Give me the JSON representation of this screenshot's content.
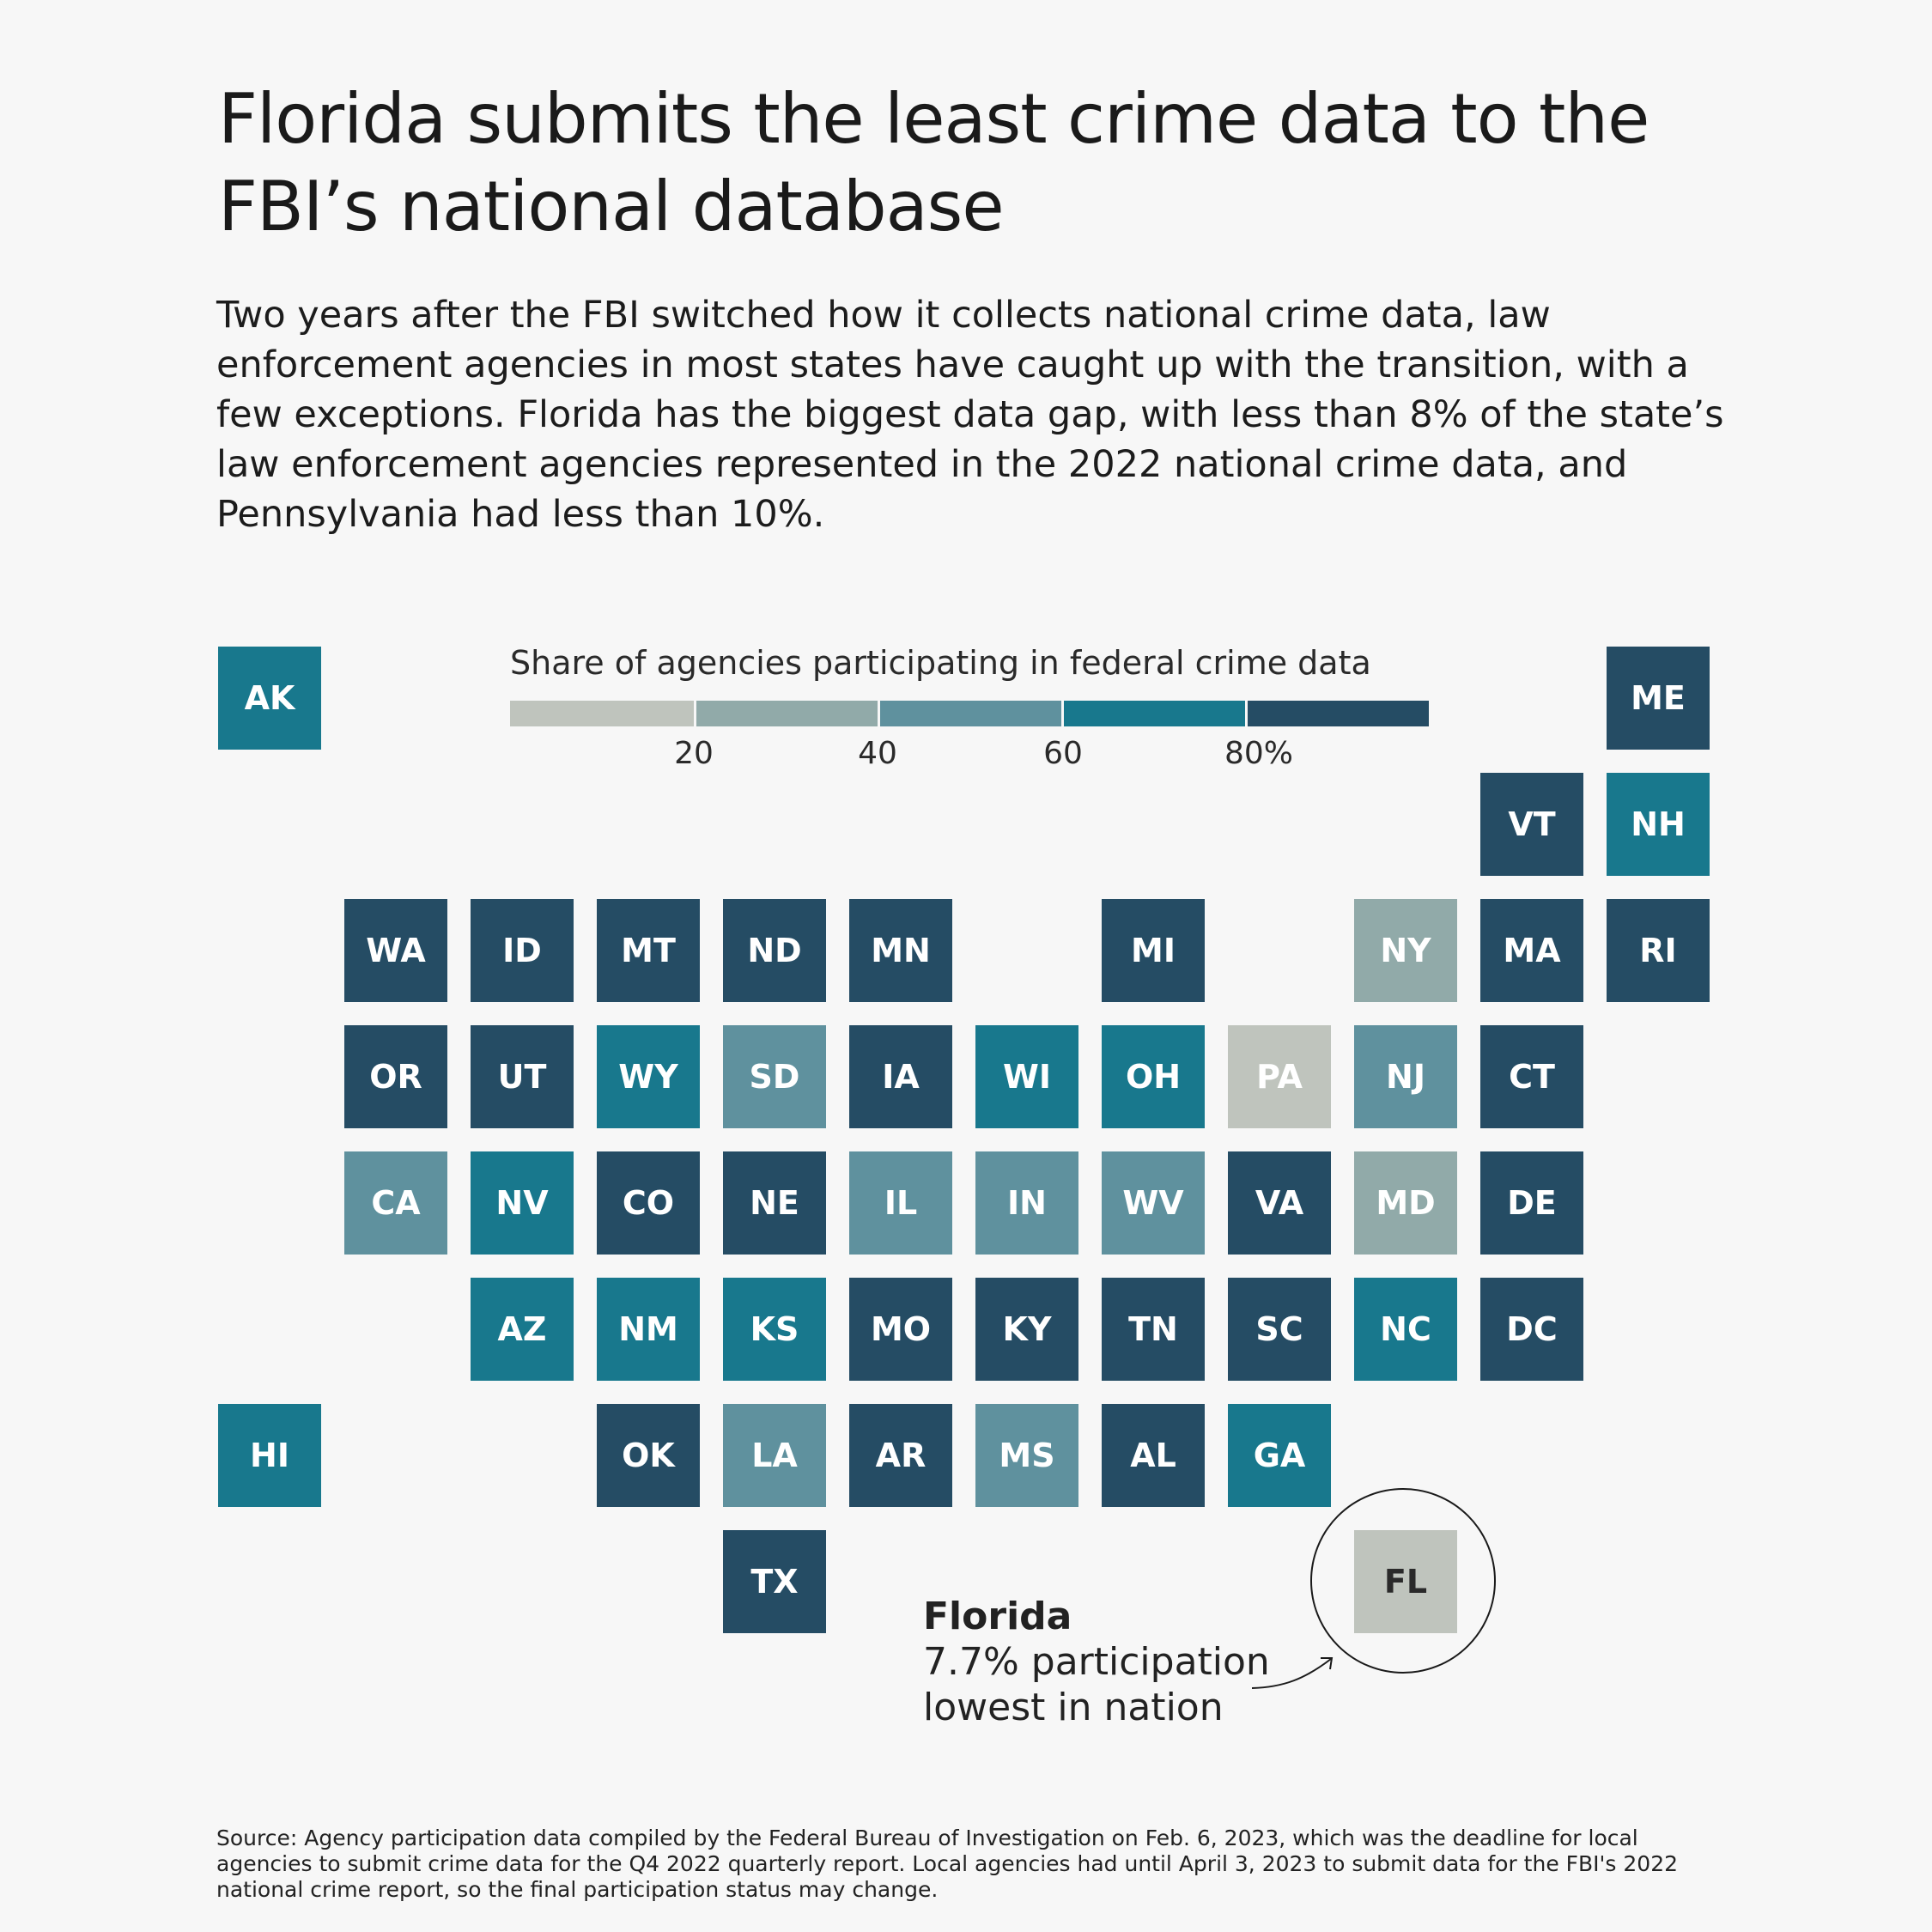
{
  "header": {
    "title": "Florida submits the least crime data to the FBI’s national database",
    "subtitle": "Two years after the FBI switched how it collects national crime data, law enforcement agencies in most states have caught up with the transition, with a few exceptions. Florida has the biggest data gap, with less than 8% of the state’s law enforcement agencies represented in the 2022 national crime data, and Pennsylvania had less than 10%."
  },
  "legend": {
    "title": "Share of agencies participating in federal crime data",
    "ticks": [
      "20",
      "40",
      "60",
      "80%"
    ],
    "bins": [
      {
        "range": [
          0,
          20
        ],
        "color": "#bfc4bd"
      },
      {
        "range": [
          20,
          40
        ],
        "color": "#91aaa9"
      },
      {
        "range": [
          40,
          60
        ],
        "color": "#5f919e"
      },
      {
        "range": [
          60,
          80
        ],
        "color": "#18788d"
      },
      {
        "range": [
          80,
          100
        ],
        "color": "#254c64"
      }
    ]
  },
  "chart_data": {
    "type": "heatmap",
    "layout": "tile-grid map of US states",
    "measure": "Share of agencies participating in federal crime data",
    "bins_percent": [
      [
        0,
        20
      ],
      [
        20,
        40
      ],
      [
        40,
        60
      ],
      [
        60,
        80
      ],
      [
        80,
        100
      ]
    ],
    "states": [
      {
        "abbr": "AK",
        "col": 0,
        "row": 0,
        "bin": 3
      },
      {
        "abbr": "ME",
        "col": 11,
        "row": 0,
        "bin": 4
      },
      {
        "abbr": "VT",
        "col": 10,
        "row": 1,
        "bin": 4
      },
      {
        "abbr": "NH",
        "col": 11,
        "row": 1,
        "bin": 3
      },
      {
        "abbr": "WA",
        "col": 1,
        "row": 2,
        "bin": 4
      },
      {
        "abbr": "ID",
        "col": 2,
        "row": 2,
        "bin": 4
      },
      {
        "abbr": "MT",
        "col": 3,
        "row": 2,
        "bin": 4
      },
      {
        "abbr": "ND",
        "col": 4,
        "row": 2,
        "bin": 4
      },
      {
        "abbr": "MN",
        "col": 5,
        "row": 2,
        "bin": 4
      },
      {
        "abbr": "MI",
        "col": 7,
        "row": 2,
        "bin": 4
      },
      {
        "abbr": "NY",
        "col": 9,
        "row": 2,
        "bin": 1
      },
      {
        "abbr": "MA",
        "col": 10,
        "row": 2,
        "bin": 4
      },
      {
        "abbr": "RI",
        "col": 11,
        "row": 2,
        "bin": 4
      },
      {
        "abbr": "OR",
        "col": 1,
        "row": 3,
        "bin": 4
      },
      {
        "abbr": "UT",
        "col": 2,
        "row": 3,
        "bin": 4
      },
      {
        "abbr": "WY",
        "col": 3,
        "row": 3,
        "bin": 3
      },
      {
        "abbr": "SD",
        "col": 4,
        "row": 3,
        "bin": 2
      },
      {
        "abbr": "IA",
        "col": 5,
        "row": 3,
        "bin": 4
      },
      {
        "abbr": "WI",
        "col": 6,
        "row": 3,
        "bin": 3
      },
      {
        "abbr": "OH",
        "col": 7,
        "row": 3,
        "bin": 3
      },
      {
        "abbr": "PA",
        "col": 8,
        "row": 3,
        "bin": 0
      },
      {
        "abbr": "NJ",
        "col": 9,
        "row": 3,
        "bin": 2
      },
      {
        "abbr": "CT",
        "col": 10,
        "row": 3,
        "bin": 4
      },
      {
        "abbr": "CA",
        "col": 1,
        "row": 4,
        "bin": 2
      },
      {
        "abbr": "NV",
        "col": 2,
        "row": 4,
        "bin": 3
      },
      {
        "abbr": "CO",
        "col": 3,
        "row": 4,
        "bin": 4
      },
      {
        "abbr": "NE",
        "col": 4,
        "row": 4,
        "bin": 4
      },
      {
        "abbr": "IL",
        "col": 5,
        "row": 4,
        "bin": 2
      },
      {
        "abbr": "IN",
        "col": 6,
        "row": 4,
        "bin": 2
      },
      {
        "abbr": "WV",
        "col": 7,
        "row": 4,
        "bin": 2
      },
      {
        "abbr": "VA",
        "col": 8,
        "row": 4,
        "bin": 4
      },
      {
        "abbr": "MD",
        "col": 9,
        "row": 4,
        "bin": 1
      },
      {
        "abbr": "DE",
        "col": 10,
        "row": 4,
        "bin": 4
      },
      {
        "abbr": "AZ",
        "col": 2,
        "row": 5,
        "bin": 3
      },
      {
        "abbr": "NM",
        "col": 3,
        "row": 5,
        "bin": 3
      },
      {
        "abbr": "KS",
        "col": 4,
        "row": 5,
        "bin": 3
      },
      {
        "abbr": "MO",
        "col": 5,
        "row": 5,
        "bin": 4
      },
      {
        "abbr": "KY",
        "col": 6,
        "row": 5,
        "bin": 4
      },
      {
        "abbr": "TN",
        "col": 7,
        "row": 5,
        "bin": 4
      },
      {
        "abbr": "SC",
        "col": 8,
        "row": 5,
        "bin": 4
      },
      {
        "abbr": "NC",
        "col": 9,
        "row": 5,
        "bin": 3
      },
      {
        "abbr": "DC",
        "col": 10,
        "row": 5,
        "bin": 4
      },
      {
        "abbr": "HI",
        "col": 0,
        "row": 6,
        "bin": 3
      },
      {
        "abbr": "OK",
        "col": 3,
        "row": 6,
        "bin": 4
      },
      {
        "abbr": "LA",
        "col": 4,
        "row": 6,
        "bin": 2
      },
      {
        "abbr": "AR",
        "col": 5,
        "row": 6,
        "bin": 4
      },
      {
        "abbr": "MS",
        "col": 6,
        "row": 6,
        "bin": 2
      },
      {
        "abbr": "AL",
        "col": 7,
        "row": 6,
        "bin": 4
      },
      {
        "abbr": "GA",
        "col": 8,
        "row": 6,
        "bin": 3
      },
      {
        "abbr": "TX",
        "col": 4,
        "row": 7,
        "bin": 4
      },
      {
        "abbr": "FL",
        "col": 9,
        "row": 7,
        "bin": 0,
        "value": 7.7
      }
    ]
  },
  "annotation": {
    "name": "Florida",
    "line1": "7.7% participation",
    "line2": "lowest in nation"
  },
  "source": "Source: Agency participation data compiled by the Federal Bureau of Investigation on Feb. 6, 2023, which was the deadline for local agencies to submit crime data for the Q4 2022 quarterly report. Local agencies had until April 3, 2023 to submit data for the FBI's 2022 national crime report, so the final participation status may change."
}
